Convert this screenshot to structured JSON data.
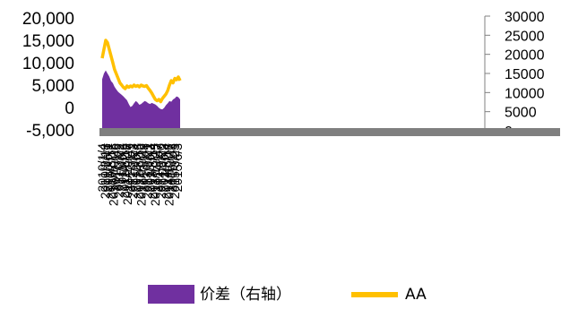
{
  "chart_data": {
    "type": "area",
    "title": "",
    "xlabel": "",
    "ylabel": "",
    "x_tick_labels": [
      "2010/1/4",
      "2010/3/18",
      "2010/6/1",
      "2010/8/12",
      "2010/10/25",
      "2011/1/6",
      "2011/3/22",
      "2011/6/2",
      "2011/8/15",
      "2011/10/27",
      "2012/1/9",
      "2012/3/23",
      "2012/6/4",
      "2012/8/15",
      "2012/10/26",
      "2013/1/8",
      "2013/3/21",
      "2013/6/3",
      "2013/8/14",
      "2013/10/25",
      "2014/1/7",
      "2014/3/20",
      "2014/6/3",
      "2014/8/14",
      "2014/10/27",
      "2015/1/8",
      "2015/3/23",
      "2015/6/3"
    ],
    "left_axis": {
      "ylim": [
        -5000,
        20000
      ],
      "ticks": [
        "20,000",
        "15,000",
        "10,000",
        "5,000",
        "0",
        "-5,000"
      ]
    },
    "right_axis": {
      "ylim": [
        0,
        30000
      ],
      "ticks": [
        "30000",
        "25000",
        "20000",
        "15000",
        "10000",
        "5000",
        "0"
      ]
    },
    "series": [
      {
        "name": "价差（右轴）",
        "axis": "right",
        "type": "area",
        "color": "#7030a0",
        "values": [
          13500,
          15000,
          15800,
          15000,
          14200,
          13000,
          12500,
          11500,
          10800,
          10200,
          9800,
          9400,
          9000,
          8500,
          8000,
          7000,
          6200,
          6500,
          7200,
          7800,
          7400,
          6800,
          7000,
          7400,
          7800,
          7600,
          7200,
          7000,
          7300,
          7100,
          6900,
          6500,
          6000,
          5700,
          5600,
          6000,
          6700,
          7200,
          7800,
          7600,
          8200,
          8500,
          9000,
          8800,
          8200
        ]
      },
      {
        "name": "AA",
        "axis": "left",
        "type": "line",
        "color": "#ffc000",
        "values": [
          11000,
          13000,
          15000,
          14500,
          13000,
          11500,
          10000,
          8500,
          7500,
          6500,
          5500,
          5000,
          4500,
          4200,
          4800,
          4500,
          4800,
          4600,
          5000,
          4700,
          4900,
          4600,
          5000,
          4800,
          4700,
          4900,
          4300,
          3800,
          3200,
          2500,
          1800,
          1500,
          1800,
          1300,
          2000,
          2500,
          3000,
          3800,
          5000,
          6000,
          5500,
          6500,
          6200,
          6800,
          6000
        ]
      }
    ],
    "legend": {
      "placement": "bottom"
    },
    "grid": false
  }
}
